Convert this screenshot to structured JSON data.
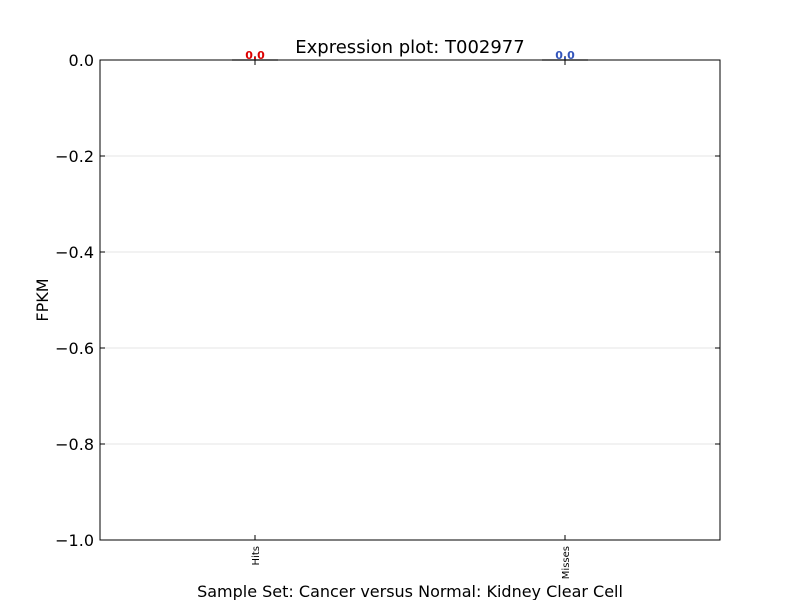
{
  "chart_data": {
    "type": "box",
    "title": "Expression plot: T002977",
    "xlabel": "Sample Set: Cancer versus Normal: Kidney Clear Cell",
    "ylabel": "FPKM",
    "ylim": [
      -1.0,
      0.0
    ],
    "yticks": [
      0.0,
      -0.2,
      -0.4,
      -0.6,
      -0.8,
      -1.0
    ],
    "ytick_labels": [
      "0.0",
      "−0.2",
      "−0.4",
      "−0.6",
      "−0.8",
      "−1.0"
    ],
    "grid": true,
    "categories": [
      "Hits",
      "Misses"
    ],
    "series": [
      {
        "category": "Hits",
        "values": [
          0.0
        ],
        "median": 0.0,
        "data_label": "0.0",
        "color": "#dd0000"
      },
      {
        "category": "Misses",
        "values": [
          0.0
        ],
        "median": 0.0,
        "data_label": "0.0",
        "color": "#3355bb"
      }
    ]
  }
}
